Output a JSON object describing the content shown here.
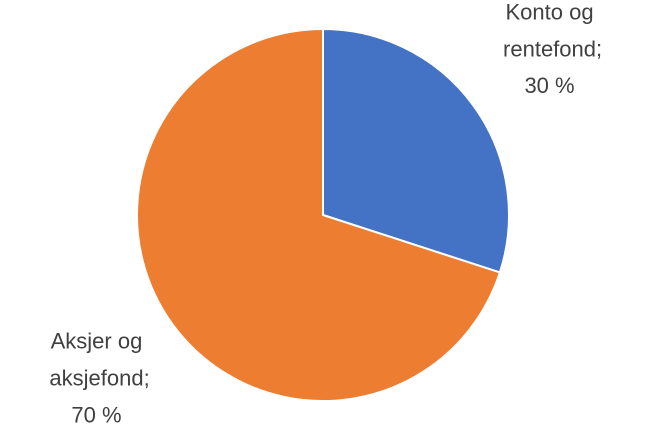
{
  "chart_data": {
    "type": "pie",
    "categories": [
      "Konto og rentefond",
      "Aksjer og aksjefond"
    ],
    "values": [
      30,
      70
    ],
    "value_labels": [
      "30 %",
      "70 %"
    ],
    "label_separator": ";",
    "colors": [
      "#4472c4",
      "#ed7d31"
    ]
  }
}
